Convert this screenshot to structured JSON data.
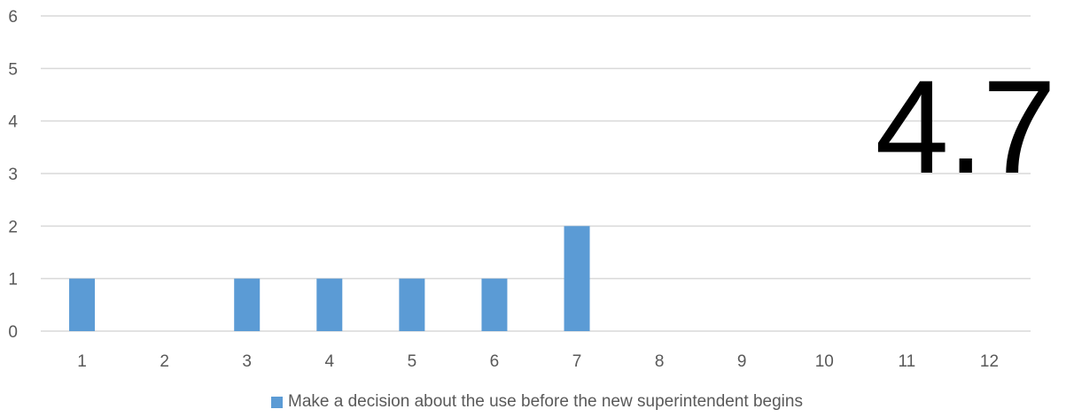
{
  "big_value": "4.7",
  "chart_data": {
    "type": "bar",
    "categories": [
      "1",
      "2",
      "3",
      "4",
      "5",
      "6",
      "7",
      "8",
      "9",
      "10",
      "11",
      "12"
    ],
    "series": [
      {
        "name": "Make a decision about the use before the new superintendent begins",
        "values": [
          1,
          0,
          1,
          1,
          1,
          1,
          2,
          0,
          0,
          0,
          0,
          0
        ],
        "color": "#5B9BD5"
      }
    ],
    "y_ticks": [
      "0",
      "1",
      "2",
      "3",
      "4",
      "5",
      "6"
    ],
    "ylim": [
      0,
      6
    ],
    "grid": true,
    "legend_position": "bottom",
    "title": "",
    "xlabel": "",
    "ylabel": ""
  }
}
